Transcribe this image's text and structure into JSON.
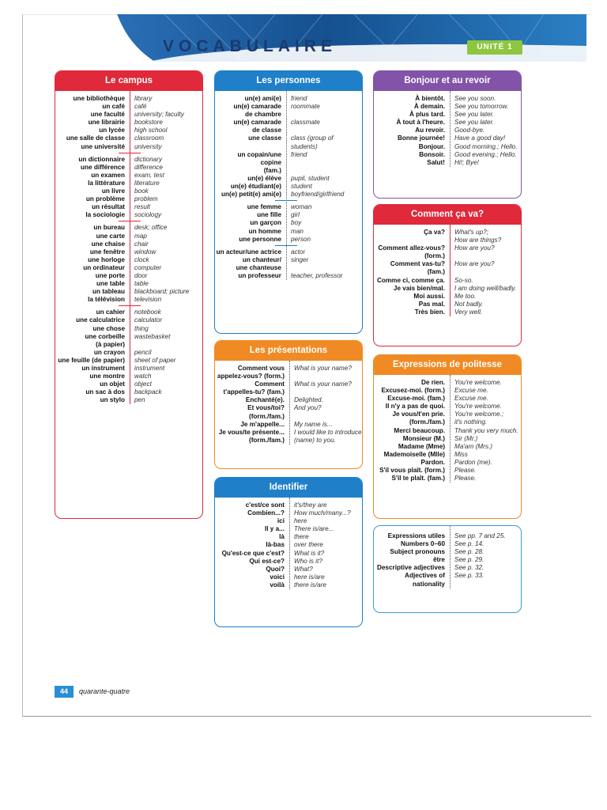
{
  "header": {
    "title": "VOCABULAIRE",
    "unit": "UNITÉ 1"
  },
  "footer": {
    "page_number": "44",
    "page_word": "quarante-quatre"
  },
  "colors": {
    "red": "#e0293a",
    "blue": "#1f7fc8",
    "orange": "#f08a24",
    "purple": "#8253a8",
    "green": "#8fc640"
  },
  "campus": {
    "heading": "Le campus",
    "groups": [
      [
        [
          "une bibliothèque",
          "library"
        ],
        [
          "un café",
          "café"
        ],
        [
          "une faculté",
          "university; faculty"
        ],
        [
          "une librairie",
          "bookstore"
        ],
        [
          "un lycée",
          "high school"
        ],
        [
          "une salle de classe",
          "classroom"
        ],
        [
          "une université",
          "university"
        ]
      ],
      [
        [
          "un dictionnaire",
          "dictionary"
        ],
        [
          "une différence",
          "difference"
        ],
        [
          "un examen",
          "exam, test"
        ],
        [
          "la littérature",
          "literature"
        ],
        [
          "un livre",
          "book"
        ],
        [
          "un problème",
          "problem"
        ],
        [
          "un résultat",
          "result"
        ],
        [
          "la sociologie",
          "sociology"
        ]
      ],
      [
        [
          "un bureau",
          "desk; office"
        ],
        [
          "une carte",
          "map"
        ],
        [
          "une chaise",
          "chair"
        ],
        [
          "une fenêtre",
          "window"
        ],
        [
          "une horloge",
          "clock"
        ],
        [
          "un ordinateur",
          "computer"
        ],
        [
          "une porte",
          "door"
        ],
        [
          "une table",
          "table"
        ],
        [
          "un tableau",
          "blackboard; picture"
        ],
        [
          "la télévision",
          "television"
        ]
      ],
      [
        [
          "un cahier",
          "notebook"
        ],
        [
          "une calculatrice",
          "calculator"
        ],
        [
          "une chose",
          "thing"
        ],
        [
          "une corbeille\n(à papier)",
          "wastebasket"
        ],
        [
          "un crayon",
          "pencil"
        ],
        [
          "une feuille (de papier)",
          "sheet of paper"
        ],
        [
          "un instrument",
          "instrument"
        ],
        [
          "une montre",
          "watch"
        ],
        [
          "un objet",
          "object"
        ],
        [
          "un sac à dos",
          "backpack"
        ],
        [
          "un stylo",
          "pen"
        ]
      ]
    ]
  },
  "personnes": {
    "heading": "Les personnes",
    "groups": [
      [
        [
          "un(e) ami(e)",
          "friend"
        ],
        [
          "un(e) camarade\nde chambre",
          "roommate"
        ],
        [
          "un(e) camarade\nde classe",
          "classmate"
        ],
        [
          "une classe",
          "class (group of\nstudents)"
        ],
        [
          "un copain/une copine\n(fam.)",
          "friend"
        ],
        [
          "un(e) élève",
          "pupil, student"
        ],
        [
          "un(e) étudiant(e)",
          "student"
        ],
        [
          "un(e) petit(e) ami(e)",
          "boyfriend/girlfriend"
        ]
      ],
      [
        [
          "une femme",
          "woman"
        ],
        [
          "une fille",
          "girl"
        ],
        [
          "un garçon",
          "boy"
        ],
        [
          "un homme",
          "man"
        ],
        [
          "une personne",
          "person"
        ]
      ],
      [
        [
          "un acteur/une actrice",
          "actor"
        ],
        [
          "un chanteur/\nune chanteuse",
          "singer"
        ],
        [
          "un professeur",
          "teacher, professor"
        ]
      ]
    ]
  },
  "presentations": {
    "heading": "Les présentations",
    "groups": [
      [
        [
          "Comment vous\nappelez-vous? (form.)",
          "What is your name?"
        ],
        [
          "Comment\nt'appelles-tu? (fam.)",
          "What is your name?"
        ],
        [
          "Enchanté(e).",
          "Delighted."
        ],
        [
          "Et vous/toi?\n(form./fam.)",
          "And you?"
        ],
        [
          "Je m'appelle...",
          "My name is..."
        ],
        [
          "Je vous/te présente...\n(form./fam.)",
          "I would like to introduce\n(name) to you."
        ]
      ]
    ]
  },
  "identifier": {
    "heading": "Identifier",
    "groups": [
      [
        [
          "c'est/ce sont",
          "it's/they are"
        ],
        [
          "Combien...?",
          "How much/many...?"
        ],
        [
          "ici",
          "here"
        ],
        [
          "Il y a...",
          "There is/are..."
        ],
        [
          "là",
          "there"
        ],
        [
          "là-bas",
          "over there"
        ],
        [
          "Qu'est-ce que c'est?",
          "What is it?"
        ],
        [
          "Qui est-ce?",
          "Who is it?"
        ],
        [
          "Quoi?",
          "What?"
        ],
        [
          "voici",
          "here is/are"
        ],
        [
          "voilà",
          "there is/are"
        ]
      ]
    ]
  },
  "bonjour": {
    "heading": "Bonjour et au revoir",
    "groups": [
      [
        [
          "À bientôt.",
          "See you soon."
        ],
        [
          "À demain.",
          "See you tomorrow."
        ],
        [
          "À plus tard.",
          "See you later."
        ],
        [
          "À tout à l'heure.",
          "See you later."
        ],
        [
          "Au revoir.",
          "Good-bye."
        ],
        [
          "Bonne journée!",
          "Have a good day!"
        ],
        [
          "Bonjour.",
          "Good morning.; Hello."
        ],
        [
          "Bonsoir.",
          "Good evening.; Hello."
        ],
        [
          "Salut!",
          "Hi!; Bye!"
        ]
      ]
    ]
  },
  "cava": {
    "heading": "Comment ça va?",
    "groups": [
      [
        [
          "Ça va?",
          "What's up?;\nHow are things?"
        ],
        [
          "Comment allez-vous?\n(form.)",
          "How are you?"
        ],
        [
          "Comment vas-tu?\n(fam.)",
          "How are you?"
        ],
        [
          "Comme ci, comme ça.",
          "So-so."
        ],
        [
          "Je vais bien/mal.",
          "I am doing well/badly."
        ],
        [
          "Moi aussi.",
          "Me too."
        ],
        [
          "Pas mal.",
          "Not badly."
        ],
        [
          "Très bien.",
          "Very well."
        ]
      ]
    ]
  },
  "politesse": {
    "heading": "Expressions de politesse",
    "groups": [
      [
        [
          "De rien.",
          "You're welcome."
        ],
        [
          "Excusez-moi. (form.)",
          "Excuse me."
        ],
        [
          "Excuse-moi. (fam.)",
          "Excuse me."
        ],
        [
          "Il n'y a pas de quoi.",
          "You're welcome."
        ],
        [
          "Je vous/t'en prie.\n(form./fam.)",
          "You're welcome.;\nit's nothing."
        ],
        [
          "Merci beaucoup.",
          "Thank you very much."
        ],
        [
          "Monsieur (M.)",
          "Sir (Mr.)"
        ],
        [
          "Madame (Mme)",
          "Ma'am (Mrs.)"
        ],
        [
          "Mademoiselle (Mlle)",
          "Miss"
        ],
        [
          "Pardon.",
          "Pardon (me)."
        ],
        [
          "S'il vous plaît. (form.)",
          "Please."
        ],
        [
          "S'il te plaît. (fam.)",
          "Please."
        ]
      ]
    ]
  },
  "utiles": {
    "groups": [
      [
        [
          "Expressions utiles",
          "See pp. 7 and 25."
        ],
        [
          "Numbers 0–60",
          "See p. 14."
        ],
        [
          "Subject pronouns",
          "See p. 28."
        ],
        [
          "être",
          "See p. 29."
        ],
        [
          "Descriptive adjectives",
          "See p. 32."
        ],
        [
          "Adjectives of\nnationality",
          "See p. 33."
        ]
      ]
    ]
  }
}
